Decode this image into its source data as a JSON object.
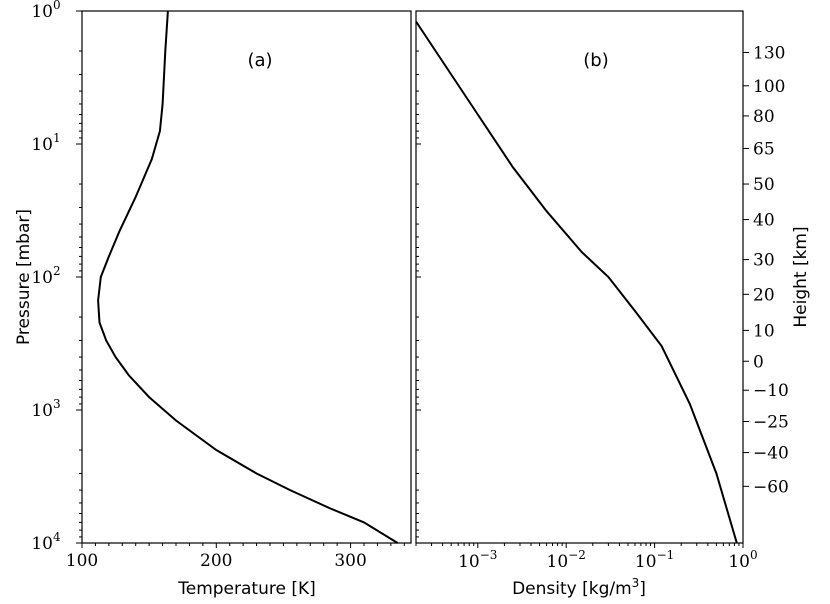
{
  "chart_data": [
    {
      "panel_label": "(a)",
      "type": "line",
      "xlabel": "Temperature [K]",
      "ylabel": "Pressure [mbar]",
      "xlim": [
        100,
        345
      ],
      "ylim": [
        10000,
        1
      ],
      "yscale": "log",
      "xticks": [
        100,
        200,
        300
      ],
      "ytick_labels": [
        {
          "value": 1,
          "base": "10",
          "exp": "0"
        },
        {
          "value": 10,
          "base": "10",
          "exp": "1"
        },
        {
          "value": 100,
          "base": "10",
          "exp": "2"
        },
        {
          "value": 1000,
          "base": "10",
          "exp": "3"
        },
        {
          "value": 10000,
          "base": "10",
          "exp": "4"
        }
      ],
      "series": [
        {
          "x": [
            164,
            162,
            160,
            158,
            152,
            140,
            128,
            120,
            114,
            112,
            113,
            118,
            125,
            135,
            150,
            170,
            200,
            230,
            255,
            285,
            310,
            335
          ],
          "y": [
            1,
            2,
            5,
            8,
            13,
            25,
            45,
            70,
            100,
            150,
            220,
            300,
            400,
            550,
            800,
            1200,
            2000,
            3000,
            4000,
            5500,
            7000,
            10000
          ]
        }
      ],
      "grid": false
    },
    {
      "panel_label": "(b)",
      "type": "line",
      "xlabel": "Density [kg/m",
      "xlabel_sup": "3",
      "xlabel_end": "]",
      "xscale": "log",
      "xlim": [
        0.0002,
        1
      ],
      "xtick_labels": [
        {
          "value": 0.001,
          "base": "10",
          "exp": "−3"
        },
        {
          "value": 0.01,
          "base": "10",
          "exp": "−2"
        },
        {
          "value": 0.1,
          "base": "10",
          "exp": "−1"
        },
        {
          "value": 1,
          "base": "10",
          "exp": "0"
        }
      ],
      "y2label": "Height [km]",
      "y2ticks": [
        {
          "label": "130",
          "pressure": 2.05
        },
        {
          "label": "100",
          "pressure": 3.65
        },
        {
          "label": "80",
          "pressure": 6.15
        },
        {
          "label": "65",
          "pressure": 10.8
        },
        {
          "label": "50",
          "pressure": 20
        },
        {
          "label": "40",
          "pressure": 37
        },
        {
          "label": "30",
          "pressure": 74
        },
        {
          "label": "20",
          "pressure": 135
        },
        {
          "label": "10",
          "pressure": 252
        },
        {
          "label": "0",
          "pressure": 430
        },
        {
          "label": "−10",
          "pressure": 710
        },
        {
          "label": "−25",
          "pressure": 1220
        },
        {
          "label": "−40",
          "pressure": 2090
        },
        {
          "label": "−60",
          "pressure": 3750
        }
      ],
      "series": [
        {
          "x": [
            0.0002,
            0.0005,
            0.001,
            0.0025,
            0.006,
            0.015,
            0.03,
            0.06,
            0.12,
            0.25,
            0.5,
            0.85
          ],
          "y": [
            1.2,
            3,
            6,
            15,
            32,
            65,
            100,
            180,
            330,
            900,
            3000,
            10000
          ]
        }
      ],
      "grid": false
    }
  ]
}
